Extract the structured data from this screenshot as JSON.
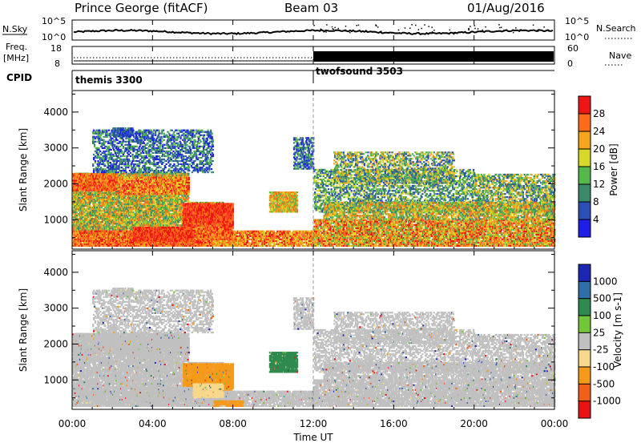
{
  "header": {
    "station": "Prince George (fitACF)",
    "beam": "Beam 03",
    "date": "01/Aug/2016"
  },
  "small_panels": {
    "nsky_label": "N.Sky",
    "nsky_ticks": [
      "10^5",
      "10^0"
    ],
    "nsearch_label": "N.Search",
    "nsearch_ticks": [
      "10^5",
      "10^0"
    ],
    "freq_label_1": "Freq.",
    "freq_label_2": "[MHz]",
    "freq_ticks": [
      "18",
      "8"
    ],
    "nave_label": "Nave",
    "nave_ticks": [
      "60",
      "0"
    ],
    "cpid_label": "CPID",
    "cpid_modes": [
      {
        "name": "themis 3300",
        "start_hour": 0
      },
      {
        "name": "twofsound 3503",
        "start_hour": 12
      }
    ]
  },
  "chart_data": [
    {
      "type": "heatmap",
      "name": "power",
      "ylabel": "Slant Range [km]",
      "ylim": [
        180,
        4600
      ],
      "yticks": [
        "1000",
        "2000",
        "3000",
        "4000"
      ],
      "xlim": [
        0,
        24
      ],
      "colorbar_label": "Power [dB]",
      "colorbar_ticks": [
        "4",
        "8",
        "12",
        "16",
        "20",
        "24",
        "28"
      ],
      "colorbar_colors": [
        "#1e1ee6",
        "#2b4fb4",
        "#3a8a6a",
        "#55b84a",
        "#d8d82a",
        "#f5a51e",
        "#ff6b1a",
        "#ee1515"
      ]
    },
    {
      "type": "heatmap",
      "name": "velocity",
      "ylabel": "Slant Range [km]",
      "ylim": [
        180,
        4600
      ],
      "yticks": [
        "1000",
        "2000",
        "3000",
        "4000"
      ],
      "xlim": [
        0,
        24
      ],
      "xticks": [
        "00:00",
        "04:00",
        "08:00",
        "12:00",
        "16:00",
        "20:00",
        "00:00"
      ],
      "xlabel": "Time UT",
      "colorbar_label": "Velocity [m s-1]",
      "colorbar_ticks": [
        "1000",
        "500",
        "100",
        "25",
        "-25",
        "-100",
        "-500",
        "-1000"
      ],
      "colorbar_colors": [
        "#1c28b4",
        "#2f6ea8",
        "#2e8a4e",
        "#72c63a",
        "#c0c0c0",
        "#f8d88c",
        "#f59a1a",
        "#f06018",
        "#e81414"
      ]
    }
  ]
}
